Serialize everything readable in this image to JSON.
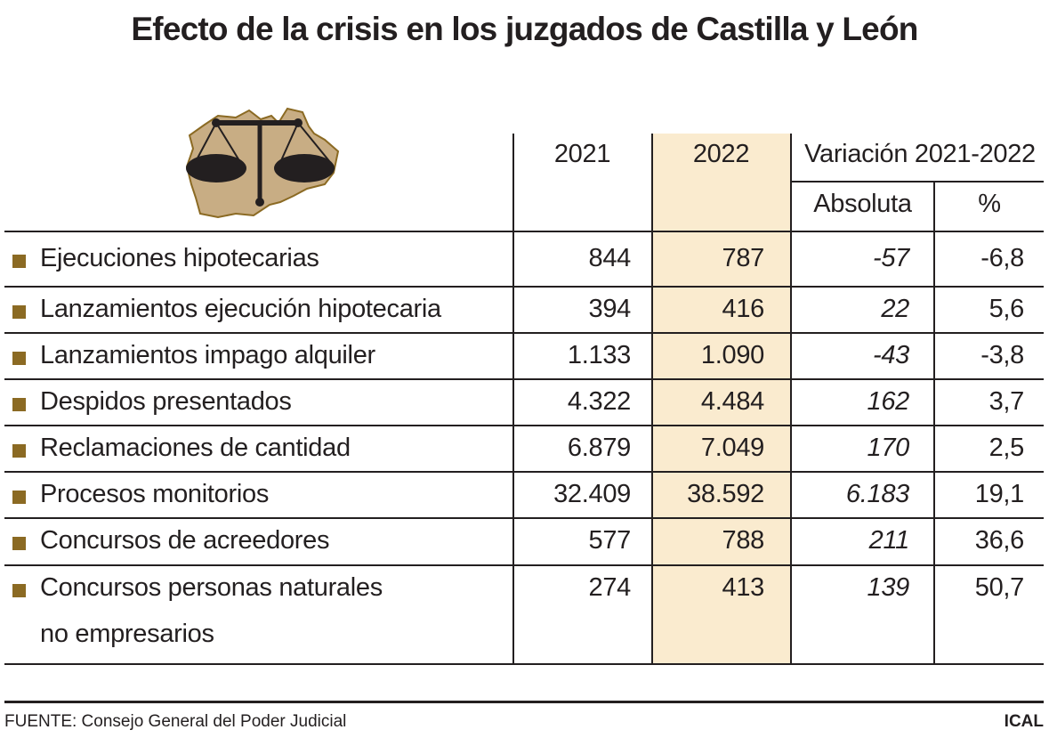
{
  "title": "Efecto de la crisis en los juzgados de Castilla y León",
  "chart_data": {
    "type": "table",
    "title": "Efecto de la crisis en los juzgados de Castilla y León",
    "columns": {
      "y2021": "2021",
      "y2022": "2022",
      "variation": "Variación 2021-2022",
      "absolute": "Absoluta",
      "percent": "%"
    },
    "rows": [
      {
        "label": "Ejecuciones hipotecarias",
        "label2": "",
        "y2021": "844",
        "y2022": "787",
        "absolute": "-57",
        "percent": "-6,8"
      },
      {
        "label": "Lanzamientos ejecución hipotecaria",
        "label2": "",
        "y2021": "394",
        "y2022": "416",
        "absolute": "22",
        "percent": "5,6"
      },
      {
        "label": "Lanzamientos impago alquiler",
        "label2": "",
        "y2021": "1.133",
        "y2022": "1.090",
        "absolute": "-43",
        "percent": "-3,8"
      },
      {
        "label": "Despidos presentados",
        "label2": "",
        "y2021": "4.322",
        "y2022": "4.484",
        "absolute": "162",
        "percent": "3,7"
      },
      {
        "label": "Reclamaciones de cantidad",
        "label2": "",
        "y2021": "6.879",
        "y2022": "7.049",
        "absolute": "170",
        "percent": "2,5"
      },
      {
        "label": "Procesos monitorios",
        "label2": "",
        "y2021": "32.409",
        "y2022": "38.592",
        "absolute": "6.183",
        "percent": "19,1"
      },
      {
        "label": "Concursos de acreedores",
        "label2": "",
        "y2021": "577",
        "y2022": "788",
        "absolute": "211",
        "percent": "36,6"
      },
      {
        "label": "Concursos personas naturales",
        "label2": "no empresarios",
        "y2021": "274",
        "y2022": "413",
        "absolute": "139",
        "percent": "50,7"
      }
    ],
    "highlight_column": "2022",
    "colors": {
      "highlight": "#faebcf",
      "bullet": "#8b6a23",
      "map": "#c8ad84",
      "map_outline": "#8b6a23",
      "ink": "#231f20"
    }
  },
  "footer": {
    "source": "FUENTE: Consejo General del Poder Judicial",
    "brand": "ICAL"
  },
  "icons": {
    "logo": "scales-of-justice-over-castilla-y-leon-map-icon"
  }
}
